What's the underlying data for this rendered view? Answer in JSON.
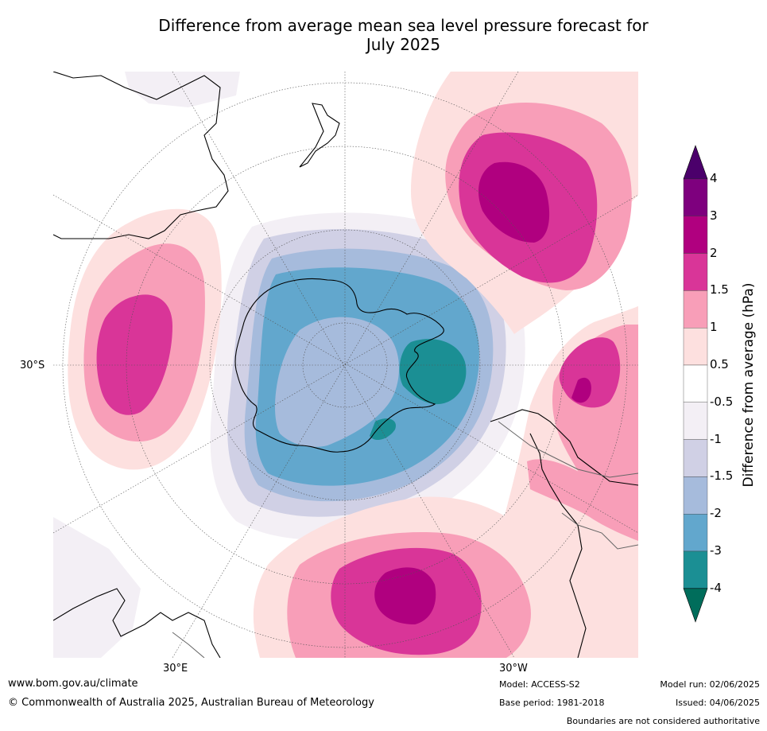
{
  "title_line1": "Difference from average mean sea level pressure forecast for",
  "title_line2": "July 2025",
  "axis_labels": {
    "lat_30s": "30°S",
    "lon_30e": "30°E",
    "lon_30w": "30°W"
  },
  "colorbar": {
    "title": "Difference from average (hPa)",
    "ticks": [
      "4",
      "3",
      "2",
      "1.5",
      "1",
      "0.5",
      "-0.5",
      "-1",
      "-1.5",
      "-2",
      "-3",
      "-4"
    ],
    "colors": [
      "#4b006b",
      "#7e007e",
      "#b0007f",
      "#d93598",
      "#f89eb8",
      "#fde0df",
      "#ffffff",
      "#f3eff5",
      "#d0d0e5",
      "#a6bbdc",
      "#62a7cd",
      "#1b8f94",
      "#006d5b"
    ]
  },
  "footer": {
    "website": "www.bom.gov.au/climate",
    "copyright": "© Commonwealth of Australia 2025, Australian Bureau of Meteorology",
    "model": "Model: ACCESS-S2",
    "base_period": "Base period: 1981-2018",
    "model_run": "Model run: 02/06/2025",
    "issued": "Issued: 04/06/2025",
    "disclaimer": "Boundaries are not considered authoritative"
  }
}
